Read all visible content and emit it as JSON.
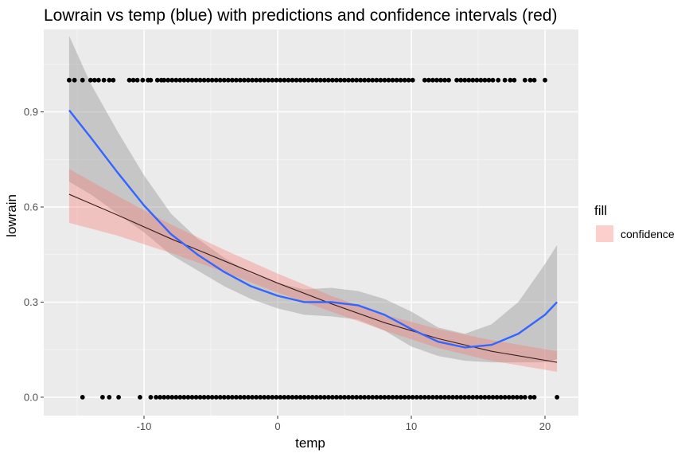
{
  "chart_data": {
    "type": "scatter",
    "title": "Lowrain vs temp (blue) with predictions and confidence intervals (red)",
    "xlabel": "temp",
    "ylabel": "lowrain",
    "xlim": [
      -17.5,
      22.5
    ],
    "ylim": [
      -0.058,
      1.16
    ],
    "x_ticks": [
      -10,
      0,
      10,
      20
    ],
    "x_tick_labels": [
      "-10",
      "0",
      "10",
      "20"
    ],
    "y_ticks": [
      0.0,
      0.3,
      0.6,
      0.9
    ],
    "y_tick_labels": [
      "0.0",
      "0.3",
      "0.6",
      "0.9"
    ],
    "grid": true,
    "legend": {
      "title": "fill",
      "placement": "right",
      "entries": [
        {
          "label": "confidence",
          "color": "#f8766d"
        }
      ]
    },
    "colors": {
      "panel": "#ebebeb",
      "points": "#000000",
      "smooth_line": "#3366ff",
      "smooth_band": "#c4c4c4",
      "prediction_line": "#3a1f1f",
      "confidence_band": "#f8766d"
    },
    "points_y1_x": [
      -15.6,
      -15.2,
      -14.6,
      -14.0,
      -13.7,
      -13.4,
      -13.0,
      -12.6,
      -12.3,
      -11.1,
      -10.8,
      -10.5,
      -10.1,
      -9.7,
      -9.5,
      -9.0,
      -8.7,
      -8.5,
      -8.2,
      -7.9,
      -7.6,
      -7.3,
      -7.0,
      -6.7,
      -6.4,
      -6.1,
      -5.8,
      -5.5,
      -5.2,
      -4.9,
      -4.6,
      -4.3,
      -4.0,
      -3.7,
      -3.4,
      -3.1,
      -2.8,
      -2.5,
      -2.2,
      -1.9,
      -1.6,
      -1.3,
      -1.0,
      -0.7,
      -0.4,
      -0.1,
      0.2,
      0.5,
      0.8,
      1.1,
      1.4,
      1.7,
      2.0,
      2.3,
      2.6,
      2.9,
      3.2,
      3.5,
      3.8,
      4.1,
      4.4,
      4.7,
      5.0,
      5.3,
      5.6,
      5.9,
      6.2,
      6.5,
      6.8,
      7.1,
      7.4,
      7.7,
      8.0,
      8.3,
      8.6,
      8.9,
      9.2,
      9.5,
      9.8,
      10.1,
      11.0,
      11.3,
      11.6,
      11.9,
      12.2,
      12.5,
      12.8,
      13.4,
      13.7,
      14.0,
      14.3,
      14.6,
      14.9,
      15.2,
      15.5,
      15.8,
      16.1,
      16.5,
      17.0,
      17.4,
      17.7,
      18.5,
      18.9,
      19.2,
      20.0
    ],
    "points_y0_x": [
      -14.6,
      -13.1,
      -12.6,
      -11.9,
      -10.3,
      -9.5,
      -9.1,
      -8.8,
      -8.5,
      -8.2,
      -7.9,
      -7.6,
      -7.3,
      -7.0,
      -6.7,
      -6.4,
      -6.1,
      -5.8,
      -5.5,
      -5.2,
      -4.9,
      -4.6,
      -4.3,
      -4.0,
      -3.7,
      -3.4,
      -3.1,
      -2.8,
      -2.5,
      -2.2,
      -1.9,
      -1.6,
      -1.3,
      -1.0,
      -0.7,
      -0.4,
      -0.1,
      0.2,
      0.5,
      0.8,
      1.1,
      1.4,
      1.7,
      2.0,
      2.3,
      2.6,
      2.9,
      3.2,
      3.5,
      3.8,
      4.1,
      4.4,
      4.7,
      5.0,
      5.3,
      5.6,
      5.9,
      6.2,
      6.5,
      6.8,
      7.1,
      7.4,
      7.7,
      8.0,
      8.3,
      8.6,
      8.9,
      9.2,
      9.5,
      9.8,
      10.1,
      10.4,
      10.7,
      11.0,
      11.3,
      11.6,
      11.9,
      12.2,
      12.5,
      12.8,
      13.1,
      13.4,
      13.7,
      14.0,
      14.3,
      14.6,
      14.9,
      15.2,
      15.5,
      15.8,
      16.1,
      16.4,
      16.7,
      17.0,
      17.3,
      17.6,
      17.9,
      18.2,
      18.5,
      18.9,
      19.2,
      20.9
    ],
    "smooth_curve": [
      {
        "x": -15.6,
        "y": 0.905,
        "lo": 0.68,
        "hi": 1.14
      },
      {
        "x": -14.0,
        "y": 0.82,
        "lo": 0.64,
        "hi": 0.99
      },
      {
        "x": -12.0,
        "y": 0.71,
        "lo": 0.58,
        "hi": 0.84
      },
      {
        "x": -10.0,
        "y": 0.605,
        "lo": 0.52,
        "hi": 0.7
      },
      {
        "x": -8.0,
        "y": 0.515,
        "lo": 0.45,
        "hi": 0.58
      },
      {
        "x": -6.0,
        "y": 0.45,
        "lo": 0.4,
        "hi": 0.5
      },
      {
        "x": -4.0,
        "y": 0.395,
        "lo": 0.35,
        "hi": 0.44
      },
      {
        "x": -2.0,
        "y": 0.35,
        "lo": 0.31,
        "hi": 0.39
      },
      {
        "x": 0.0,
        "y": 0.32,
        "lo": 0.28,
        "hi": 0.36
      },
      {
        "x": 2.0,
        "y": 0.3,
        "lo": 0.26,
        "hi": 0.34
      },
      {
        "x": 4.0,
        "y": 0.3,
        "lo": 0.255,
        "hi": 0.345
      },
      {
        "x": 6.0,
        "y": 0.29,
        "lo": 0.245,
        "hi": 0.335
      },
      {
        "x": 8.0,
        "y": 0.26,
        "lo": 0.21,
        "hi": 0.31
      },
      {
        "x": 10.0,
        "y": 0.215,
        "lo": 0.16,
        "hi": 0.27
      },
      {
        "x": 12.0,
        "y": 0.175,
        "lo": 0.13,
        "hi": 0.22
      },
      {
        "x": 14.0,
        "y": 0.157,
        "lo": 0.115,
        "hi": 0.2
      },
      {
        "x": 16.0,
        "y": 0.165,
        "lo": 0.11,
        "hi": 0.23
      },
      {
        "x": 18.0,
        "y": 0.2,
        "lo": 0.11,
        "hi": 0.3
      },
      {
        "x": 20.0,
        "y": 0.26,
        "lo": 0.11,
        "hi": 0.42
      },
      {
        "x": 20.9,
        "y": 0.3,
        "lo": 0.12,
        "hi": 0.48
      }
    ],
    "prediction_line": [
      {
        "x": -15.6,
        "y": 0.64,
        "lo": 0.55,
        "hi": 0.72
      },
      {
        "x": -12.0,
        "y": 0.575,
        "lo": 0.51,
        "hi": 0.635
      },
      {
        "x": -8.0,
        "y": 0.5,
        "lo": 0.455,
        "hi": 0.545
      },
      {
        "x": -4.0,
        "y": 0.43,
        "lo": 0.395,
        "hi": 0.465
      },
      {
        "x": 0.0,
        "y": 0.36,
        "lo": 0.33,
        "hi": 0.39
      },
      {
        "x": 4.0,
        "y": 0.295,
        "lo": 0.27,
        "hi": 0.32
      },
      {
        "x": 8.0,
        "y": 0.235,
        "lo": 0.21,
        "hi": 0.26
      },
      {
        "x": 12.0,
        "y": 0.185,
        "lo": 0.155,
        "hi": 0.215
      },
      {
        "x": 16.0,
        "y": 0.145,
        "lo": 0.115,
        "hi": 0.18
      },
      {
        "x": 20.9,
        "y": 0.11,
        "lo": 0.08,
        "hi": 0.145
      }
    ]
  }
}
